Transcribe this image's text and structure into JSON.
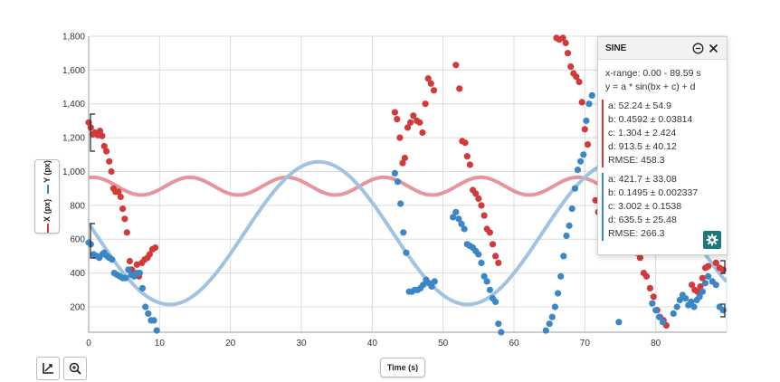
{
  "chart_data": {
    "type": "scatter",
    "xlabel": "Time (s)",
    "ylabel": [
      "X (px)",
      "Y (px)"
    ],
    "xlim": [
      0,
      90
    ],
    "ylim": [
      50,
      1800
    ],
    "x_ticks": [
      0,
      10,
      20,
      30,
      40,
      50,
      60,
      70,
      80
    ],
    "y_ticks": [
      200,
      400,
      600,
      800,
      1000,
      1200,
      1400,
      1600,
      1800
    ],
    "y_tick_labels": [
      "200",
      "400",
      "600",
      "800",
      "1,000",
      "1,200",
      "1,400",
      "1,600",
      "1,800"
    ],
    "grid": true,
    "series": [
      {
        "name": "X (px)",
        "color": "#d23a3a",
        "points": [
          [
            0,
            1290
          ],
          [
            0.3,
            1260
          ],
          [
            0.6,
            1220
          ],
          [
            0.9,
            1230
          ],
          [
            1.3,
            1215
          ],
          [
            1.6,
            1240
          ],
          [
            1.9,
            1210
          ],
          [
            2.2,
            1150
          ],
          [
            2.5,
            1120
          ],
          [
            2.9,
            1060
          ],
          [
            3.2,
            1000
          ],
          [
            3.5,
            900
          ],
          [
            3.8,
            880
          ],
          [
            4.2,
            880
          ],
          [
            4.5,
            850
          ],
          [
            4.8,
            780
          ],
          [
            5.1,
            720
          ],
          [
            5.4,
            640
          ],
          [
            5.8,
            470
          ],
          [
            6.1,
            420
          ],
          [
            6.4,
            400
          ],
          [
            6.8,
            450
          ],
          [
            7.1,
            380
          ],
          [
            7.5,
            460
          ],
          [
            7.9,
            480
          ],
          [
            8.3,
            490
          ],
          [
            8.6,
            510
          ],
          [
            9.0,
            540
          ],
          [
            9.4,
            550
          ],
          [
            43.2,
            1350
          ],
          [
            43.5,
            1310
          ],
          [
            43.9,
            1200
          ],
          [
            44.3,
            1050
          ],
          [
            44.6,
            1080
          ],
          [
            45.0,
            1260
          ],
          [
            45.4,
            1290
          ],
          [
            45.8,
            1330
          ],
          [
            46.3,
            1300
          ],
          [
            46.7,
            1290
          ],
          [
            47.1,
            1230
          ],
          [
            47.5,
            1400
          ],
          [
            47.9,
            1550
          ],
          [
            48.3,
            1520
          ],
          [
            48.7,
            1480
          ],
          [
            51.8,
            1630
          ],
          [
            52.3,
            1490
          ],
          [
            52.7,
            1180
          ],
          [
            53.1,
            1170
          ],
          [
            53.4,
            1090
          ],
          [
            53.8,
            1040
          ],
          [
            54.2,
            890
          ],
          [
            54.6,
            870
          ],
          [
            55.0,
            840
          ],
          [
            55.4,
            800
          ],
          [
            55.8,
            740
          ],
          [
            56.2,
            660
          ],
          [
            56.6,
            640
          ],
          [
            57.0,
            570
          ],
          [
            57.4,
            500
          ],
          [
            57.8,
            460
          ],
          [
            66.0,
            1790
          ],
          [
            66.4,
            1780
          ],
          [
            66.9,
            1790
          ],
          [
            67.3,
            1760
          ],
          [
            67.6,
            1700
          ],
          [
            68.0,
            1620
          ],
          [
            68.4,
            1580
          ],
          [
            68.8,
            1560
          ],
          [
            69.2,
            1530
          ],
          [
            69.6,
            1410
          ],
          [
            70.0,
            1250
          ],
          [
            70.4,
            1160
          ],
          [
            71.5,
            830
          ],
          [
            71.9,
            760
          ],
          [
            72.3,
            700
          ],
          [
            72.7,
            640
          ],
          [
            77.3,
            520
          ],
          [
            77.8,
            490
          ],
          [
            78.3,
            400
          ],
          [
            78.7,
            380
          ],
          [
            79.2,
            310
          ],
          [
            79.7,
            260
          ],
          [
            80.2,
            180
          ],
          [
            80.6,
            140
          ],
          [
            81.1,
            120
          ],
          [
            81.5,
            90
          ],
          [
            85.1,
            330
          ],
          [
            85.5,
            300
          ],
          [
            85.9,
            290
          ],
          [
            86.3,
            320
          ],
          [
            86.6,
            370
          ],
          [
            87.0,
            430
          ],
          [
            87.4,
            440
          ],
          [
            88.5,
            460
          ],
          [
            89.0,
            430
          ],
          [
            89.5,
            420
          ]
        ]
      },
      {
        "name": "Y (px)",
        "color": "#3a86c6",
        "points": [
          [
            0,
            580
          ],
          [
            0.3,
            570
          ],
          [
            0.7,
            510
          ],
          [
            1.1,
            500
          ],
          [
            1.5,
            490
          ],
          [
            1.9,
            510
          ],
          [
            2.2,
            520
          ],
          [
            2.6,
            500
          ],
          [
            2.9,
            490
          ],
          [
            3.3,
            480
          ],
          [
            3.6,
            400
          ],
          [
            4.0,
            390
          ],
          [
            4.4,
            380
          ],
          [
            4.8,
            370
          ],
          [
            5.2,
            370
          ],
          [
            5.6,
            420
          ],
          [
            6.0,
            390
          ],
          [
            6.4,
            380
          ],
          [
            6.8,
            400
          ],
          [
            7.2,
            400
          ],
          [
            7.6,
            310
          ],
          [
            8.0,
            200
          ],
          [
            8.4,
            160
          ],
          [
            8.8,
            120
          ],
          [
            9.2,
            120
          ],
          [
            9.6,
            60
          ],
          [
            43.2,
            990
          ],
          [
            43.6,
            940
          ],
          [
            44.0,
            810
          ],
          [
            44.4,
            640
          ],
          [
            44.8,
            520
          ],
          [
            45.2,
            290
          ],
          [
            45.6,
            290
          ],
          [
            46.0,
            300
          ],
          [
            46.4,
            300
          ],
          [
            46.8,
            310
          ],
          [
            47.2,
            330
          ],
          [
            47.6,
            360
          ],
          [
            48.0,
            340
          ],
          [
            48.4,
            320
          ],
          [
            48.8,
            350
          ],
          [
            51.4,
            730
          ],
          [
            51.8,
            760
          ],
          [
            52.2,
            720
          ],
          [
            52.6,
            690
          ],
          [
            53.0,
            660
          ],
          [
            53.4,
            570
          ],
          [
            53.8,
            560
          ],
          [
            54.2,
            550
          ],
          [
            54.6,
            530
          ],
          [
            55.0,
            510
          ],
          [
            55.4,
            460
          ],
          [
            55.8,
            380
          ],
          [
            56.2,
            350
          ],
          [
            56.6,
            300
          ],
          [
            57.0,
            250
          ],
          [
            57.4,
            230
          ],
          [
            57.8,
            100
          ],
          [
            58.2,
            50
          ],
          [
            64.5,
            60
          ],
          [
            65.0,
            100
          ],
          [
            65.4,
            140
          ],
          [
            65.8,
            200
          ],
          [
            66.2,
            280
          ],
          [
            66.6,
            380
          ],
          [
            67.0,
            500
          ],
          [
            67.4,
            620
          ],
          [
            67.8,
            680
          ],
          [
            68.2,
            780
          ],
          [
            68.6,
            900
          ],
          [
            69.0,
            1010
          ],
          [
            69.4,
            1060
          ],
          [
            69.8,
            1100
          ],
          [
            70.2,
            1300
          ],
          [
            70.6,
            1400
          ],
          [
            71.0,
            1450
          ],
          [
            74.8,
            110
          ],
          [
            79.5,
            220
          ],
          [
            80.0,
            180
          ],
          [
            80.5,
            140
          ],
          [
            81.0,
            110
          ],
          [
            82.5,
            160
          ],
          [
            83.0,
            200
          ],
          [
            83.4,
            240
          ],
          [
            83.8,
            270
          ],
          [
            84.2,
            250
          ],
          [
            84.6,
            210
          ],
          [
            85.0,
            230
          ],
          [
            85.4,
            200
          ],
          [
            85.8,
            240
          ],
          [
            86.2,
            260
          ],
          [
            86.6,
            290
          ],
          [
            87.0,
            340
          ],
          [
            87.4,
            380
          ],
          [
            88.0,
            350
          ],
          [
            88.5,
            330
          ],
          [
            89.0,
            200
          ],
          [
            89.5,
            180
          ]
        ]
      }
    ],
    "fits": [
      {
        "series": "X (px)",
        "color": "#e7959b",
        "a": 52.24,
        "b": 0.4592,
        "c": 1.304,
        "d": 913.5
      },
      {
        "series": "Y (px)",
        "color": "#9fc3e0",
        "a": 421.7,
        "b": 0.1495,
        "c": 3.002,
        "d": 635.5
      }
    ]
  },
  "panel": {
    "title": "SINE",
    "x_range": "x-range: 0.00 - 89.59 s",
    "equation": "y = a * sin(bx + c) + d",
    "fit_x": {
      "a": "a: 52.24 ± 54.9",
      "b": "b: 0.4592 ± 0.03814",
      "c": "c: 1.304 ± 2.424",
      "d": "d: 913.5 ± 40.12",
      "rmse": "RMSE: 458.3"
    },
    "fit_y": {
      "a": "a: 421.7 ± 33.08",
      "b": "b: 0.1495 ± 0.002337",
      "c": "c: 3.002 ± 0.1538",
      "d": "d: 635.5 ± 25.48",
      "rmse": "RMSE: 266.3"
    }
  },
  "icons": {
    "collapse": "minus-circle-icon",
    "close": "close-icon",
    "settings": "gear-icon",
    "graph_tool": "axes-icon",
    "zoom": "zoom-icon"
  }
}
